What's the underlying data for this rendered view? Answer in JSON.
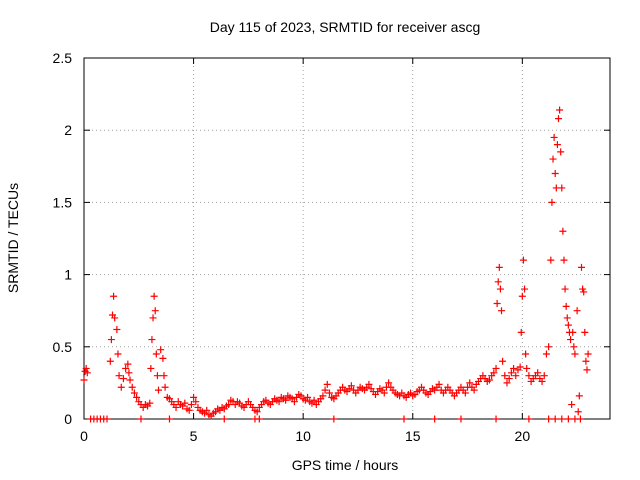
{
  "chart_data": {
    "type": "scatter",
    "title": "Day 115 of 2023, SRMTID for receiver ascg",
    "xlabel": "GPS time / hours",
    "ylabel": "SRMTID / TECUs",
    "xlim": [
      0,
      24
    ],
    "ylim": [
      0,
      2.5
    ],
    "grid": true,
    "marker": "+",
    "color": "#ff0000",
    "x_ticks": [
      0,
      5,
      10,
      15,
      20
    ],
    "x_tick_labels": [
      "0",
      "5",
      "10",
      "15",
      "20"
    ],
    "y_ticks": [
      0,
      0.5,
      1,
      1.5,
      2,
      2.5
    ],
    "y_tick_labels": [
      "0",
      "0.5",
      "1",
      "1.5",
      "2",
      "2.5"
    ],
    "series": [
      {
        "name": "SRMTID",
        "points": [
          [
            0.0,
            0.27
          ],
          [
            0.05,
            0.33
          ],
          [
            0.1,
            0.35
          ],
          [
            0.15,
            0.32
          ],
          [
            0.3,
            0.0
          ],
          [
            0.45,
            0.0
          ],
          [
            0.6,
            0.0
          ],
          [
            0.75,
            0.0
          ],
          [
            0.9,
            0.0
          ],
          [
            1.05,
            0.0
          ],
          [
            1.2,
            0.4
          ],
          [
            1.25,
            0.55
          ],
          [
            1.3,
            0.72
          ],
          [
            1.35,
            0.85
          ],
          [
            1.4,
            0.7
          ],
          [
            1.5,
            0.62
          ],
          [
            1.55,
            0.45
          ],
          [
            1.6,
            0.3
          ],
          [
            1.7,
            0.22
          ],
          [
            1.8,
            0.28
          ],
          [
            1.9,
            0.35
          ],
          [
            2.0,
            0.38
          ],
          [
            2.05,
            0.32
          ],
          [
            2.1,
            0.27
          ],
          [
            2.2,
            0.22
          ],
          [
            2.3,
            0.18
          ],
          [
            2.4,
            0.15
          ],
          [
            2.5,
            0.12
          ],
          [
            2.6,
            0.1
          ],
          [
            2.7,
            0.08
          ],
          [
            2.8,
            0.1
          ],
          [
            2.9,
            0.09
          ],
          [
            3.0,
            0.11
          ],
          [
            3.05,
            0.35
          ],
          [
            3.1,
            0.55
          ],
          [
            3.15,
            0.7
          ],
          [
            3.2,
            0.85
          ],
          [
            3.25,
            0.75
          ],
          [
            3.3,
            0.45
          ],
          [
            3.35,
            0.3
          ],
          [
            3.4,
            0.2
          ],
          [
            3.5,
            0.48
          ],
          [
            3.6,
            0.42
          ],
          [
            3.65,
            0.3
          ],
          [
            3.7,
            0.22
          ],
          [
            3.8,
            0.15
          ],
          [
            3.9,
            0.14
          ],
          [
            4.0,
            0.12
          ],
          [
            4.1,
            0.1
          ],
          [
            4.2,
            0.08
          ],
          [
            4.3,
            0.12
          ],
          [
            4.4,
            0.1
          ],
          [
            4.5,
            0.09
          ],
          [
            4.6,
            0.11
          ],
          [
            4.7,
            0.07
          ],
          [
            4.8,
            0.06
          ],
          [
            4.9,
            0.1
          ],
          [
            5.0,
            0.15
          ],
          [
            5.1,
            0.12
          ],
          [
            5.2,
            0.08
          ],
          [
            5.3,
            0.06
          ],
          [
            5.4,
            0.05
          ],
          [
            5.5,
            0.04
          ],
          [
            5.6,
            0.06
          ],
          [
            5.7,
            0.03
          ],
          [
            5.8,
            0.02
          ],
          [
            5.9,
            0.04
          ],
          [
            6.0,
            0.05
          ],
          [
            6.1,
            0.07
          ],
          [
            6.2,
            0.06
          ],
          [
            6.3,
            0.08
          ],
          [
            6.4,
            0.07
          ],
          [
            6.5,
            0.09
          ],
          [
            6.6,
            0.1
          ],
          [
            6.7,
            0.13
          ],
          [
            6.8,
            0.12
          ],
          [
            6.9,
            0.1
          ],
          [
            7.0,
            0.12
          ],
          [
            7.1,
            0.11
          ],
          [
            7.2,
            0.09
          ],
          [
            7.3,
            0.08
          ],
          [
            7.4,
            0.1
          ],
          [
            7.5,
            0.12
          ],
          [
            7.6,
            0.1
          ],
          [
            7.7,
            0.08
          ],
          [
            7.8,
            0.06
          ],
          [
            7.9,
            0.05
          ],
          [
            8.0,
            0.08
          ],
          [
            8.1,
            0.1
          ],
          [
            8.2,
            0.12
          ],
          [
            8.3,
            0.13
          ],
          [
            8.4,
            0.11
          ],
          [
            8.5,
            0.1
          ],
          [
            8.6,
            0.12
          ],
          [
            8.7,
            0.14
          ],
          [
            8.8,
            0.13
          ],
          [
            8.9,
            0.12
          ],
          [
            9.0,
            0.15
          ],
          [
            9.1,
            0.14
          ],
          [
            9.2,
            0.13
          ],
          [
            9.3,
            0.16
          ],
          [
            9.4,
            0.15
          ],
          [
            9.5,
            0.14
          ],
          [
            9.6,
            0.12
          ],
          [
            9.7,
            0.15
          ],
          [
            9.8,
            0.17
          ],
          [
            9.9,
            0.16
          ],
          [
            10.0,
            0.14
          ],
          [
            10.1,
            0.13
          ],
          [
            10.2,
            0.15
          ],
          [
            10.3,
            0.12
          ],
          [
            10.4,
            0.11
          ],
          [
            10.5,
            0.13
          ],
          [
            10.6,
            0.1
          ],
          [
            10.7,
            0.12
          ],
          [
            10.8,
            0.14
          ],
          [
            10.9,
            0.16
          ],
          [
            11.0,
            0.2
          ],
          [
            11.1,
            0.24
          ],
          [
            11.2,
            0.18
          ],
          [
            11.3,
            0.15
          ],
          [
            11.4,
            0.14
          ],
          [
            11.5,
            0.16
          ],
          [
            11.6,
            0.18
          ],
          [
            11.7,
            0.2
          ],
          [
            11.8,
            0.22
          ],
          [
            11.9,
            0.2
          ],
          [
            12.0,
            0.19
          ],
          [
            12.1,
            0.21
          ],
          [
            12.2,
            0.23
          ],
          [
            12.3,
            0.2
          ],
          [
            12.4,
            0.18
          ],
          [
            12.5,
            0.2
          ],
          [
            12.6,
            0.22
          ],
          [
            12.7,
            0.21
          ],
          [
            12.8,
            0.2
          ],
          [
            12.9,
            0.22
          ],
          [
            13.0,
            0.24
          ],
          [
            13.1,
            0.21
          ],
          [
            13.2,
            0.19
          ],
          [
            13.3,
            0.17
          ],
          [
            13.4,
            0.19
          ],
          [
            13.5,
            0.21
          ],
          [
            13.6,
            0.2
          ],
          [
            13.7,
            0.18
          ],
          [
            13.8,
            0.22
          ],
          [
            13.9,
            0.25
          ],
          [
            14.0,
            0.22
          ],
          [
            14.1,
            0.2
          ],
          [
            14.2,
            0.18
          ],
          [
            14.3,
            0.17
          ],
          [
            14.4,
            0.16
          ],
          [
            14.5,
            0.18
          ],
          [
            14.6,
            0.16
          ],
          [
            14.7,
            0.15
          ],
          [
            14.8,
            0.17
          ],
          [
            14.9,
            0.18
          ],
          [
            15.0,
            0.16
          ],
          [
            15.1,
            0.17
          ],
          [
            15.2,
            0.19
          ],
          [
            15.3,
            0.2
          ],
          [
            15.4,
            0.22
          ],
          [
            15.5,
            0.2
          ],
          [
            15.6,
            0.18
          ],
          [
            15.7,
            0.17
          ],
          [
            15.8,
            0.19
          ],
          [
            15.9,
            0.21
          ],
          [
            16.0,
            0.2
          ],
          [
            16.1,
            0.22
          ],
          [
            16.2,
            0.24
          ],
          [
            16.3,
            0.2
          ],
          [
            16.4,
            0.18
          ],
          [
            16.5,
            0.2
          ],
          [
            16.6,
            0.22
          ],
          [
            16.7,
            0.2
          ],
          [
            16.8,
            0.18
          ],
          [
            16.9,
            0.16
          ],
          [
            17.0,
            0.18
          ],
          [
            17.1,
            0.2
          ],
          [
            17.2,
            0.22
          ],
          [
            17.3,
            0.2
          ],
          [
            17.4,
            0.18
          ],
          [
            17.5,
            0.22
          ],
          [
            17.6,
            0.25
          ],
          [
            17.7,
            0.22
          ],
          [
            17.8,
            0.2
          ],
          [
            17.9,
            0.24
          ],
          [
            18.0,
            0.26
          ],
          [
            18.1,
            0.28
          ],
          [
            18.2,
            0.3
          ],
          [
            18.3,
            0.28
          ],
          [
            18.4,
            0.26
          ],
          [
            18.5,
            0.27
          ],
          [
            18.6,
            0.3
          ],
          [
            18.7,
            0.32
          ],
          [
            18.8,
            0.35
          ],
          [
            18.85,
            0.8
          ],
          [
            18.9,
            0.95
          ],
          [
            18.95,
            1.05
          ],
          [
            19.0,
            0.9
          ],
          [
            19.05,
            0.75
          ],
          [
            19.1,
            0.4
          ],
          [
            19.2,
            0.3
          ],
          [
            19.3,
            0.25
          ],
          [
            19.4,
            0.28
          ],
          [
            19.5,
            0.32
          ],
          [
            19.6,
            0.35
          ],
          [
            19.7,
            0.3
          ],
          [
            19.8,
            0.34
          ],
          [
            19.9,
            0.36
          ],
          [
            19.95,
            0.6
          ],
          [
            20.0,
            0.85
          ],
          [
            20.05,
            1.1
          ],
          [
            20.1,
            0.9
          ],
          [
            20.15,
            0.45
          ],
          [
            20.2,
            0.35
          ],
          [
            20.3,
            0.3
          ],
          [
            20.4,
            0.26
          ],
          [
            20.5,
            0.28
          ],
          [
            20.6,
            0.3
          ],
          [
            20.7,
            0.32
          ],
          [
            20.8,
            0.28
          ],
          [
            20.9,
            0.26
          ],
          [
            21.0,
            0.3
          ],
          [
            21.1,
            0.45
          ],
          [
            21.2,
            0.5
          ],
          [
            21.3,
            1.1
          ],
          [
            21.35,
            1.5
          ],
          [
            21.4,
            1.8
          ],
          [
            21.45,
            1.95
          ],
          [
            21.5,
            1.7
          ],
          [
            21.55,
            1.6
          ],
          [
            21.6,
            1.9
          ],
          [
            21.65,
            2.08
          ],
          [
            21.7,
            2.14
          ],
          [
            21.75,
            1.85
          ],
          [
            21.8,
            1.6
          ],
          [
            21.85,
            1.3
          ],
          [
            21.9,
            1.1
          ],
          [
            21.95,
            0.9
          ],
          [
            22.0,
            0.78
          ],
          [
            22.05,
            0.7
          ],
          [
            22.1,
            0.65
          ],
          [
            22.15,
            0.6
          ],
          [
            22.2,
            0.55
          ],
          [
            22.25,
            0.1
          ],
          [
            22.3,
            0.6
          ],
          [
            22.35,
            0.5
          ],
          [
            22.4,
            0.45
          ],
          [
            22.5,
            0.75
          ],
          [
            22.6,
            0.16
          ],
          [
            22.7,
            1.05
          ],
          [
            22.75,
            0.9
          ],
          [
            22.8,
            0.88
          ],
          [
            22.85,
            0.6
          ],
          [
            22.9,
            0.4
          ],
          [
            22.95,
            0.34
          ],
          [
            23.0,
            0.45
          ],
          [
            22.55,
            0.05
          ],
          [
            22.65,
            0.0
          ],
          [
            22.4,
            0.0
          ],
          [
            22.1,
            0.0
          ],
          [
            21.8,
            0.0
          ],
          [
            21.5,
            0.0
          ],
          [
            21.2,
            0.0
          ],
          [
            20.3,
            0.0
          ],
          [
            18.8,
            0.0
          ],
          [
            17.2,
            0.0
          ],
          [
            16.0,
            0.0
          ],
          [
            14.6,
            0.0
          ],
          [
            11.4,
            0.0
          ],
          [
            8.0,
            0.0
          ],
          [
            7.8,
            0.0
          ],
          [
            6.4,
            0.0
          ],
          [
            3.9,
            0.0
          ],
          [
            2.6,
            0.0
          ]
        ]
      }
    ]
  }
}
